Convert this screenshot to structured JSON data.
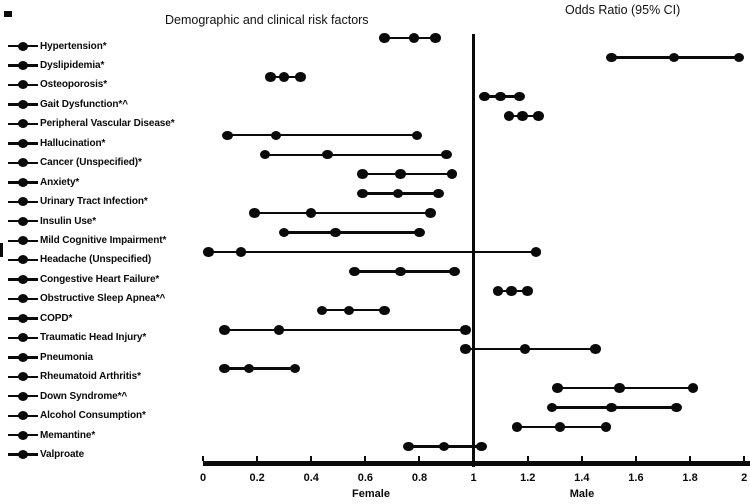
{
  "titles": {
    "left": "Demographic and clinical risk factors",
    "right": "Odds Ratio (95% CI)"
  },
  "axis": {
    "tick_labels": [
      "0",
      "0.2",
      "0.4",
      "0.6",
      "0.8",
      "1",
      "1.2",
      "1.4",
      "1.6",
      "1.8",
      "2"
    ],
    "min": 0,
    "max": 2,
    "reference_value": 1,
    "left_group_label": "Female",
    "right_group_label": "Male"
  },
  "colors": {
    "foreground": "#0a0a0a",
    "background": "#ffffff"
  },
  "chart_data": {
    "type": "scatter",
    "subtype": "forest-plot-dot-ci",
    "title": "Demographic and clinical risk factors",
    "xlabel": "Odds Ratio (95% CI)",
    "xlim": [
      0,
      2
    ],
    "x_tick_step": 0.2,
    "reference_line": 1,
    "grid": false,
    "side_labels": {
      "left_of_1": "Female",
      "right_of_1": "Male"
    },
    "rows": [
      {
        "label": "Hypertension*",
        "low": 0.67,
        "or": 0.78,
        "high": 0.86
      },
      {
        "label": "Dyslipidemia*",
        "low": 1.51,
        "or": 1.74,
        "high": 1.98
      },
      {
        "label": "Osteoporosis*",
        "low": 0.25,
        "or": 0.3,
        "high": 0.36
      },
      {
        "label": "Gait Dysfunction*^",
        "low": 1.04,
        "or": 1.1,
        "high": 1.17
      },
      {
        "label": "Peripheral Vascular Disease*",
        "low": 1.13,
        "or": 1.18,
        "high": 1.24
      },
      {
        "label": "Hallucination*",
        "low": 0.09,
        "or": 0.27,
        "high": 0.79
      },
      {
        "label": "Cancer (Unspecified)*",
        "low": 0.23,
        "or": 0.46,
        "high": 0.9
      },
      {
        "label": "Anxiety*",
        "low": 0.59,
        "or": 0.73,
        "high": 0.92
      },
      {
        "label": "Urinary Tract Infection*",
        "low": 0.59,
        "or": 0.72,
        "high": 0.87
      },
      {
        "label": "Insulin Use*",
        "low": 0.19,
        "or": 0.4,
        "high": 0.84
      },
      {
        "label": "Mild Cognitive Impairment*",
        "low": 0.3,
        "or": 0.49,
        "high": 0.8
      },
      {
        "label": "Headache (Unspecified)",
        "low": 0.02,
        "or": 0.14,
        "high": 1.23
      },
      {
        "label": "Congestive Heart Failure*",
        "low": 0.56,
        "or": 0.73,
        "high": 0.93
      },
      {
        "label": "Obstructive Sleep Apnea*^",
        "low": 1.09,
        "or": 1.14,
        "high": 1.2
      },
      {
        "label": "COPD*",
        "low": 0.44,
        "or": 0.54,
        "high": 0.67
      },
      {
        "label": "Traumatic Head Injury*",
        "low": 0.08,
        "or": 0.28,
        "high": 0.97
      },
      {
        "label": "Pneumonia",
        "low": 0.97,
        "or": 1.19,
        "high": 1.45
      },
      {
        "label": "Rheumatoid Arthritis*",
        "low": 0.08,
        "or": 0.17,
        "high": 0.34
      },
      {
        "label": "Down Syndrome*^",
        "low": 1.31,
        "or": 1.54,
        "high": 1.81
      },
      {
        "label": "Alcohol Consumption*",
        "low": 1.29,
        "or": 1.51,
        "high": 1.75
      },
      {
        "label": "Memantine*",
        "low": 1.16,
        "or": 1.32,
        "high": 1.49
      },
      {
        "label": "Valproate",
        "low": 0.76,
        "or": 0.89,
        "high": 1.03
      }
    ]
  }
}
